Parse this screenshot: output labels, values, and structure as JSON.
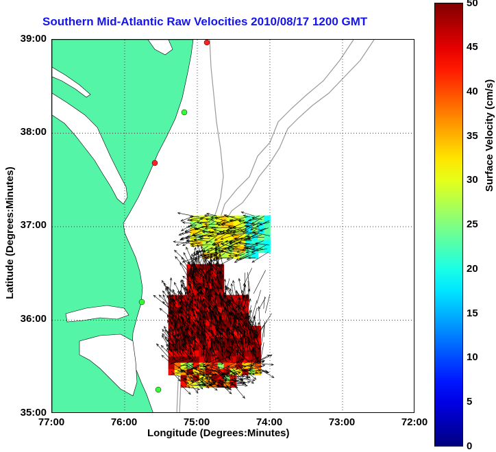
{
  "title": "Southern Mid-Atlantic Raw Velocities 2010/08/17 1200 GMT",
  "x_axis": {
    "label": "Longitude (Degrees:Minutes)",
    "ticks": [
      "77:00",
      "76:00",
      "75:00",
      "74:00",
      "73:00",
      "72:00"
    ]
  },
  "y_axis": {
    "label": "Latitude (Degrees:Minutes)",
    "ticks": [
      "39:00",
      "38:00",
      "37:00",
      "36:00",
      "35:00"
    ]
  },
  "colorbar": {
    "label": "Surface Velocity (cm/s)",
    "ticks": [
      "50",
      "45",
      "40",
      "35",
      "30",
      "25",
      "20",
      "15",
      "10",
      "5",
      "0"
    ],
    "range": [
      0,
      50
    ]
  },
  "map_extent": {
    "lon": [
      -77,
      -72
    ],
    "lat": [
      35,
      39
    ]
  },
  "colors": {
    "title": "#1414ee",
    "land": "#55f5a8",
    "bathymetry": "#999999",
    "station_green": "#33ff33",
    "station_red": "#ff2020"
  },
  "velocity_regions": [
    {
      "name": "northern-patch",
      "lon": [
        -75.1,
        -74.05
      ],
      "lat": [
        36.68,
        37.12
      ],
      "typical_speed": 30
    },
    {
      "name": "southern-patch",
      "lon": [
        -75.4,
        -74.15
      ],
      "lat": [
        35.3,
        36.6
      ],
      "typical_speed": 48
    }
  ]
}
